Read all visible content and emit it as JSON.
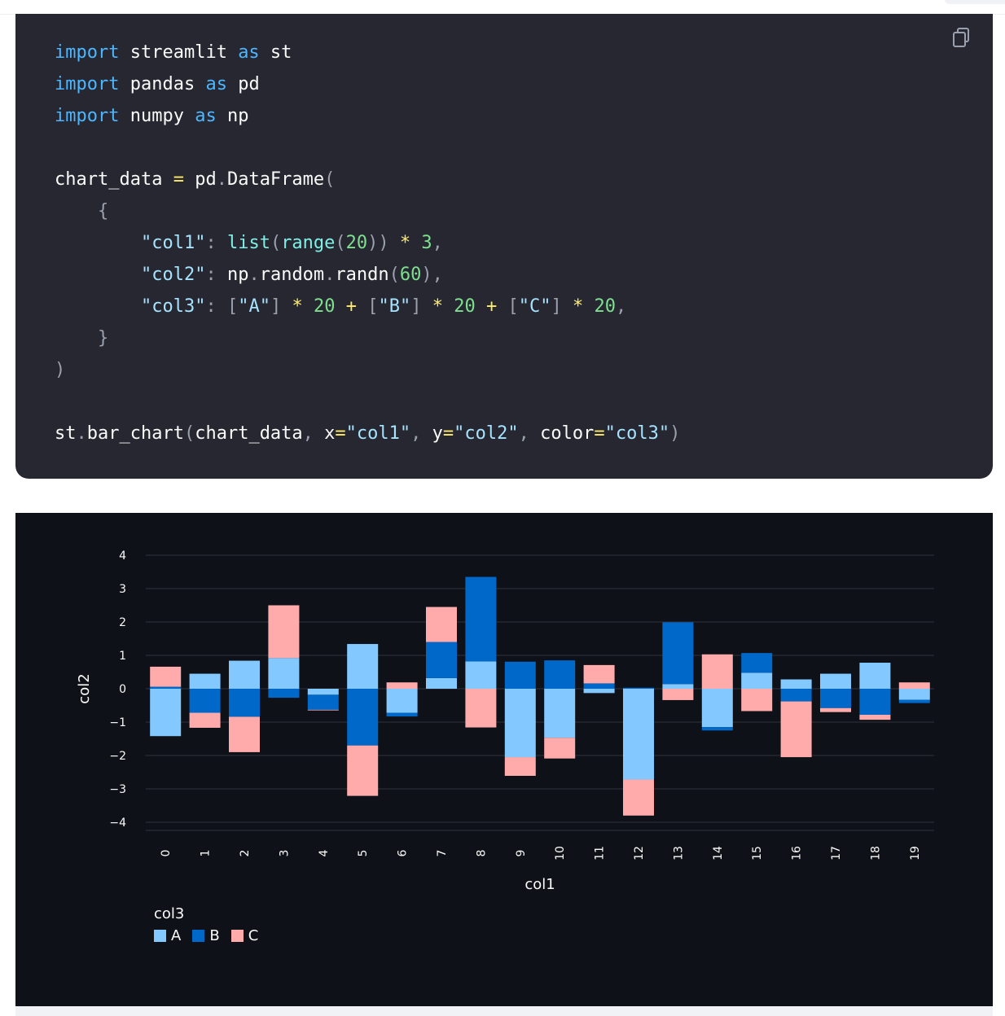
{
  "code": {
    "lines": [
      [
        [
          "kw",
          "import"
        ],
        [
          "t",
          " streamlit "
        ],
        [
          "kw",
          "as"
        ],
        [
          "t",
          " st"
        ]
      ],
      [
        [
          "kw",
          "import"
        ],
        [
          "t",
          " pandas "
        ],
        [
          "kw",
          "as"
        ],
        [
          "t",
          " pd"
        ]
      ],
      [
        [
          "kw",
          "import"
        ],
        [
          "t",
          " numpy "
        ],
        [
          "kw",
          "as"
        ],
        [
          "t",
          " np"
        ]
      ],
      [],
      [
        [
          "t",
          "chart_data "
        ],
        [
          "op",
          "="
        ],
        [
          "t",
          " pd"
        ],
        [
          "punct",
          "."
        ],
        [
          "t",
          "DataFrame"
        ],
        [
          "punct",
          "("
        ]
      ],
      [
        [
          "punct",
          "    {"
        ]
      ],
      [
        [
          "t",
          "        "
        ],
        [
          "str",
          "\"col1\""
        ],
        [
          "punct",
          ": "
        ],
        [
          "fn",
          "list"
        ],
        [
          "punct",
          "("
        ],
        [
          "fn",
          "range"
        ],
        [
          "punct",
          "("
        ],
        [
          "num",
          "20"
        ],
        [
          "punct",
          "))"
        ],
        [
          "t",
          " "
        ],
        [
          "op",
          "*"
        ],
        [
          "t",
          " "
        ],
        [
          "num",
          "3"
        ],
        [
          "punct",
          ","
        ]
      ],
      [
        [
          "t",
          "        "
        ],
        [
          "str",
          "\"col2\""
        ],
        [
          "punct",
          ": "
        ],
        [
          "t",
          "np"
        ],
        [
          "punct",
          "."
        ],
        [
          "t",
          "random"
        ],
        [
          "punct",
          "."
        ],
        [
          "t",
          "randn"
        ],
        [
          "punct",
          "("
        ],
        [
          "num",
          "60"
        ],
        [
          "punct",
          "),"
        ]
      ],
      [
        [
          "t",
          "        "
        ],
        [
          "str",
          "\"col3\""
        ],
        [
          "punct",
          ": ["
        ],
        [
          "str",
          "\"A\""
        ],
        [
          "punct",
          "]"
        ],
        [
          "t",
          " "
        ],
        [
          "op",
          "*"
        ],
        [
          "t",
          " "
        ],
        [
          "num",
          "20"
        ],
        [
          "t",
          " "
        ],
        [
          "op",
          "+"
        ],
        [
          "t",
          " "
        ],
        [
          "punct",
          "["
        ],
        [
          "str",
          "\"B\""
        ],
        [
          "punct",
          "]"
        ],
        [
          "t",
          " "
        ],
        [
          "op",
          "*"
        ],
        [
          "t",
          " "
        ],
        [
          "num",
          "20"
        ],
        [
          "t",
          " "
        ],
        [
          "op",
          "+"
        ],
        [
          "t",
          " "
        ],
        [
          "punct",
          "["
        ],
        [
          "str",
          "\"C\""
        ],
        [
          "punct",
          "]"
        ],
        [
          "t",
          " "
        ],
        [
          "op",
          "*"
        ],
        [
          "t",
          " "
        ],
        [
          "num",
          "20"
        ],
        [
          "punct",
          ","
        ]
      ],
      [
        [
          "punct",
          "    }"
        ]
      ],
      [
        [
          "punct",
          ")"
        ]
      ],
      [],
      [
        [
          "t",
          "st"
        ],
        [
          "punct",
          "."
        ],
        [
          "t",
          "bar_chart"
        ],
        [
          "punct",
          "("
        ],
        [
          "t",
          "chart_data"
        ],
        [
          "punct",
          ", "
        ],
        [
          "t",
          "x"
        ],
        [
          "op",
          "="
        ],
        [
          "str",
          "\"col1\""
        ],
        [
          "punct",
          ", "
        ],
        [
          "t",
          "y"
        ],
        [
          "op",
          "="
        ],
        [
          "str",
          "\"col2\""
        ],
        [
          "punct",
          ", "
        ],
        [
          "t",
          "color"
        ],
        [
          "op",
          "="
        ],
        [
          "str",
          "\"col3\""
        ],
        [
          "punct",
          ")"
        ]
      ]
    ]
  },
  "colors": {
    "A": "#83c9ff",
    "B": "#0068c9",
    "C": "#ffabab",
    "grid": "#31333f",
    "text": "#fafafa"
  },
  "chart_data": {
    "type": "bar",
    "stacked": true,
    "xlabel": "col1",
    "ylabel": "col2",
    "ylim": [
      -4,
      4
    ],
    "yticks": [
      "4",
      "3",
      "2",
      "1",
      "0",
      "−1",
      "−2",
      "−3",
      "−4"
    ],
    "categories": [
      "0",
      "1",
      "2",
      "3",
      "4",
      "5",
      "6",
      "7",
      "8",
      "9",
      "10",
      "11",
      "12",
      "13",
      "14",
      "15",
      "16",
      "17",
      "18",
      "19"
    ],
    "legend_title": "col3",
    "series": [
      {
        "name": "A",
        "values": [
          -1.42,
          0.45,
          0.84,
          0.92,
          -0.18,
          1.34,
          -0.72,
          0.32,
          0.82,
          -2.05,
          -1.47,
          -0.13,
          -2.72,
          0.14,
          -1.15,
          0.48,
          0.28,
          0.45,
          0.78,
          -0.33
        ]
      },
      {
        "name": "B",
        "values": [
          0.06,
          -0.72,
          -0.84,
          -0.27,
          -0.45,
          -1.7,
          -0.11,
          1.08,
          2.53,
          0.81,
          0.85,
          0.16,
          0.03,
          1.85,
          -0.1,
          0.59,
          -0.38,
          -0.58,
          -0.78,
          -0.1
        ]
      },
      {
        "name": "C",
        "values": [
          0.6,
          -0.45,
          -1.06,
          1.58,
          -0.02,
          -1.51,
          0.19,
          1.05,
          -1.16,
          -0.56,
          -0.62,
          0.55,
          -1.08,
          -0.34,
          1.03,
          -0.67,
          -1.67,
          -0.12,
          -0.15,
          0.19
        ]
      }
    ]
  },
  "legend": {
    "title": "col3",
    "items": [
      "A",
      "B",
      "C"
    ]
  }
}
